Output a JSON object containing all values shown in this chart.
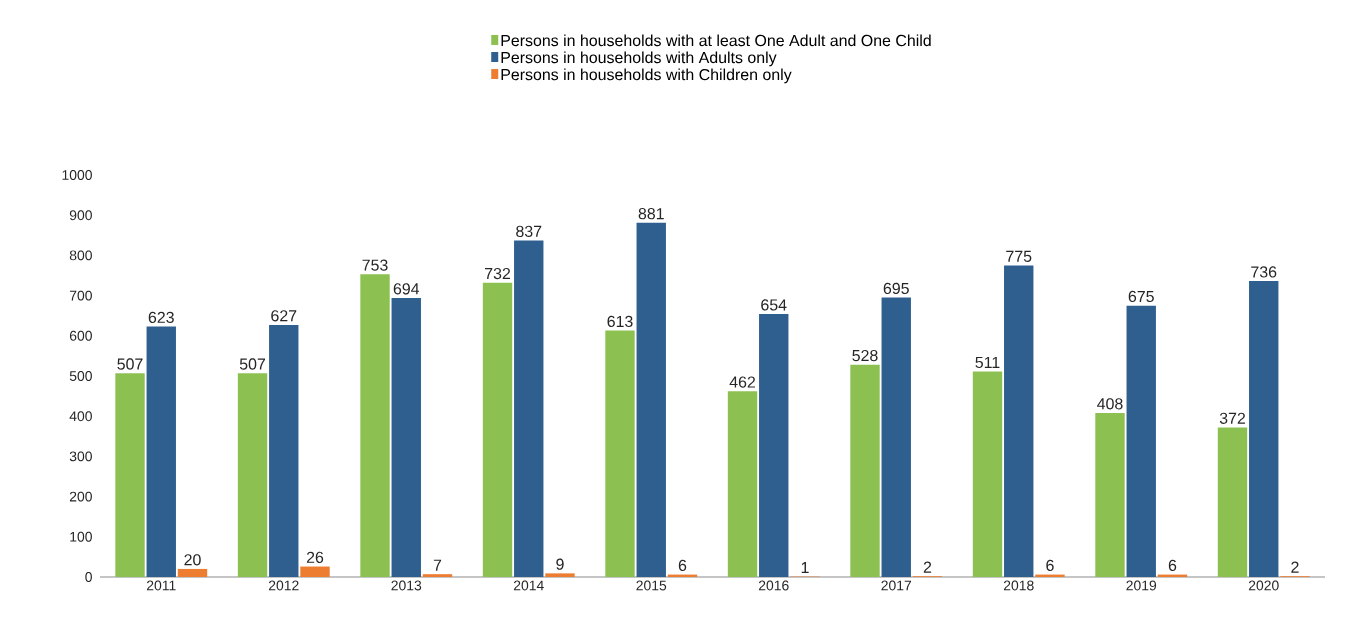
{
  "chart_data": {
    "type": "bar",
    "categories": [
      "2011",
      "2012",
      "2013",
      "2014",
      "2015",
      "2016",
      "2017",
      "2018",
      "2019",
      "2020"
    ],
    "series": [
      {
        "name": "Persons in households with at least One Adult and One Child",
        "color": "#8cc152",
        "values": [
          507,
          507,
          753,
          732,
          613,
          462,
          528,
          511,
          408,
          372
        ]
      },
      {
        "name": "Persons in households with Adults only",
        "color": "#2f5f8f",
        "values": [
          623,
          627,
          694,
          837,
          881,
          654,
          695,
          775,
          675,
          736
        ]
      },
      {
        "name": "Persons in households with Children only",
        "color": "#ed7d31",
        "values": [
          20,
          26,
          7,
          9,
          6,
          1,
          2,
          6,
          6,
          2
        ]
      }
    ],
    "ylim": [
      0,
      1000
    ],
    "yticks": [
      0,
      100,
      200,
      300,
      400,
      500,
      600,
      700,
      800,
      900,
      1000
    ],
    "data_labels": true,
    "legend": "top",
    "grid": false
  }
}
